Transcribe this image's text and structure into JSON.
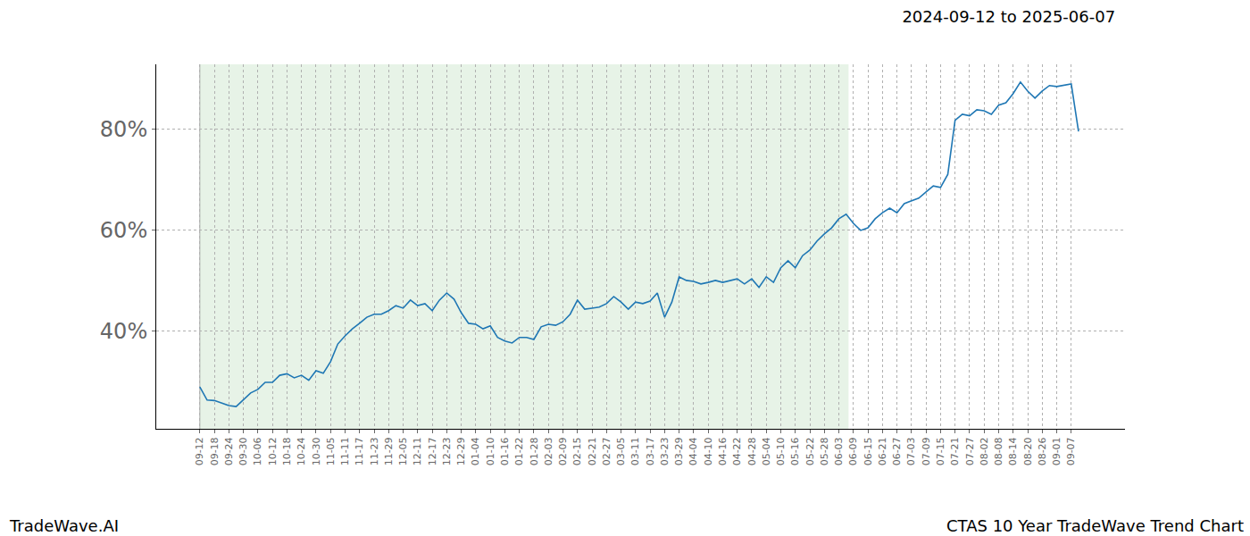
{
  "chart_data": {
    "type": "line",
    "title": "2024-09-12 to 2025-06-07",
    "annotations": [
      {
        "text": "TradeWave.AI"
      },
      {
        "text": "CTAS 10 Year TradeWave Trend Chart"
      }
    ],
    "categories": [
      "09-12",
      null,
      "09-18",
      null,
      "09-24",
      null,
      "09-30",
      null,
      "10-06",
      null,
      "10-12",
      null,
      "10-18",
      null,
      "10-24",
      null,
      "10-30",
      null,
      "11-05",
      null,
      "11-11",
      null,
      "11-17",
      null,
      "11-23",
      null,
      "11-29",
      null,
      "12-05",
      null,
      "12-11",
      null,
      "12-17",
      null,
      "12-23",
      null,
      "12-29",
      null,
      "01-04",
      null,
      "01-10",
      null,
      "01-16",
      null,
      "01-22",
      null,
      "01-28",
      null,
      "02-03",
      null,
      "02-09",
      null,
      "02-15",
      null,
      "02-21",
      null,
      "02-27",
      null,
      "03-05",
      null,
      "03-11",
      null,
      "03-17",
      null,
      "03-23",
      null,
      "03-29",
      null,
      "04-04",
      null,
      "04-10",
      null,
      "04-16",
      null,
      "04-22",
      null,
      "04-28",
      null,
      "05-04",
      null,
      "05-10",
      null,
      "05-16",
      null,
      "05-22",
      null,
      "05-28",
      null,
      "06-03",
      null,
      "06-09",
      null,
      "06-15",
      null,
      "06-21",
      null,
      "06-27",
      null,
      "07-03",
      null,
      "07-09",
      null,
      "07-15",
      null,
      "07-21",
      null,
      "07-27",
      null,
      "08-02",
      null,
      "08-08",
      null,
      "08-14",
      null,
      "08-20",
      null,
      "08-26",
      null,
      "09-01",
      null,
      "09-07",
      null
    ],
    "values": [
      29.0,
      26.4,
      26.3,
      25.8,
      25.3,
      25.1,
      26.4,
      27.8,
      28.5,
      29.9,
      29.9,
      31.3,
      31.6,
      30.8,
      31.3,
      30.3,
      32.2,
      31.7,
      34.0,
      37.5,
      39.1,
      40.5,
      41.6,
      42.8,
      43.4,
      43.4,
      44.1,
      45.1,
      44.6,
      46.2,
      45.1,
      45.5,
      44.1,
      46.2,
      47.6,
      46.4,
      43.7,
      41.6,
      41.4,
      40.5,
      41.1,
      38.8,
      38.1,
      37.7,
      38.8,
      38.8,
      38.4,
      40.9,
      41.4,
      41.2,
      41.9,
      43.4,
      46.2,
      44.4,
      44.6,
      44.8,
      45.5,
      46.9,
      45.8,
      44.4,
      45.8,
      45.5,
      46.0,
      47.6,
      42.8,
      45.8,
      50.8,
      50.1,
      49.9,
      49.4,
      49.7,
      50.1,
      49.7,
      50.1,
      50.4,
      49.4,
      50.4,
      48.7,
      50.8,
      49.7,
      52.6,
      54.0,
      52.6,
      55.0,
      56.1,
      57.9,
      59.3,
      60.5,
      62.3,
      63.2,
      61.4,
      60.0,
      60.5,
      62.3,
      63.5,
      64.4,
      63.5,
      65.3,
      65.8,
      66.4,
      67.6,
      68.8,
      68.5,
      71.1,
      81.8,
      83.0,
      82.7,
      83.9,
      83.7,
      83.0,
      84.8,
      85.3,
      87.1,
      89.4,
      87.6,
      86.2,
      87.6,
      88.7,
      88.5,
      88.7,
      89.0,
      79.6
    ],
    "color": "#1f77b4",
    "xlim": [
      -6.0,
      127.4
    ],
    "highlight_xlim": [
      0,
      89.33
    ],
    "ylim": [
      20.7,
      92.9
    ],
    "yticks": [
      {
        "value": 40,
        "label": "40%"
      },
      {
        "value": 60,
        "label": "60%"
      },
      {
        "value": 80,
        "label": "80%"
      }
    ],
    "grid": true
  }
}
